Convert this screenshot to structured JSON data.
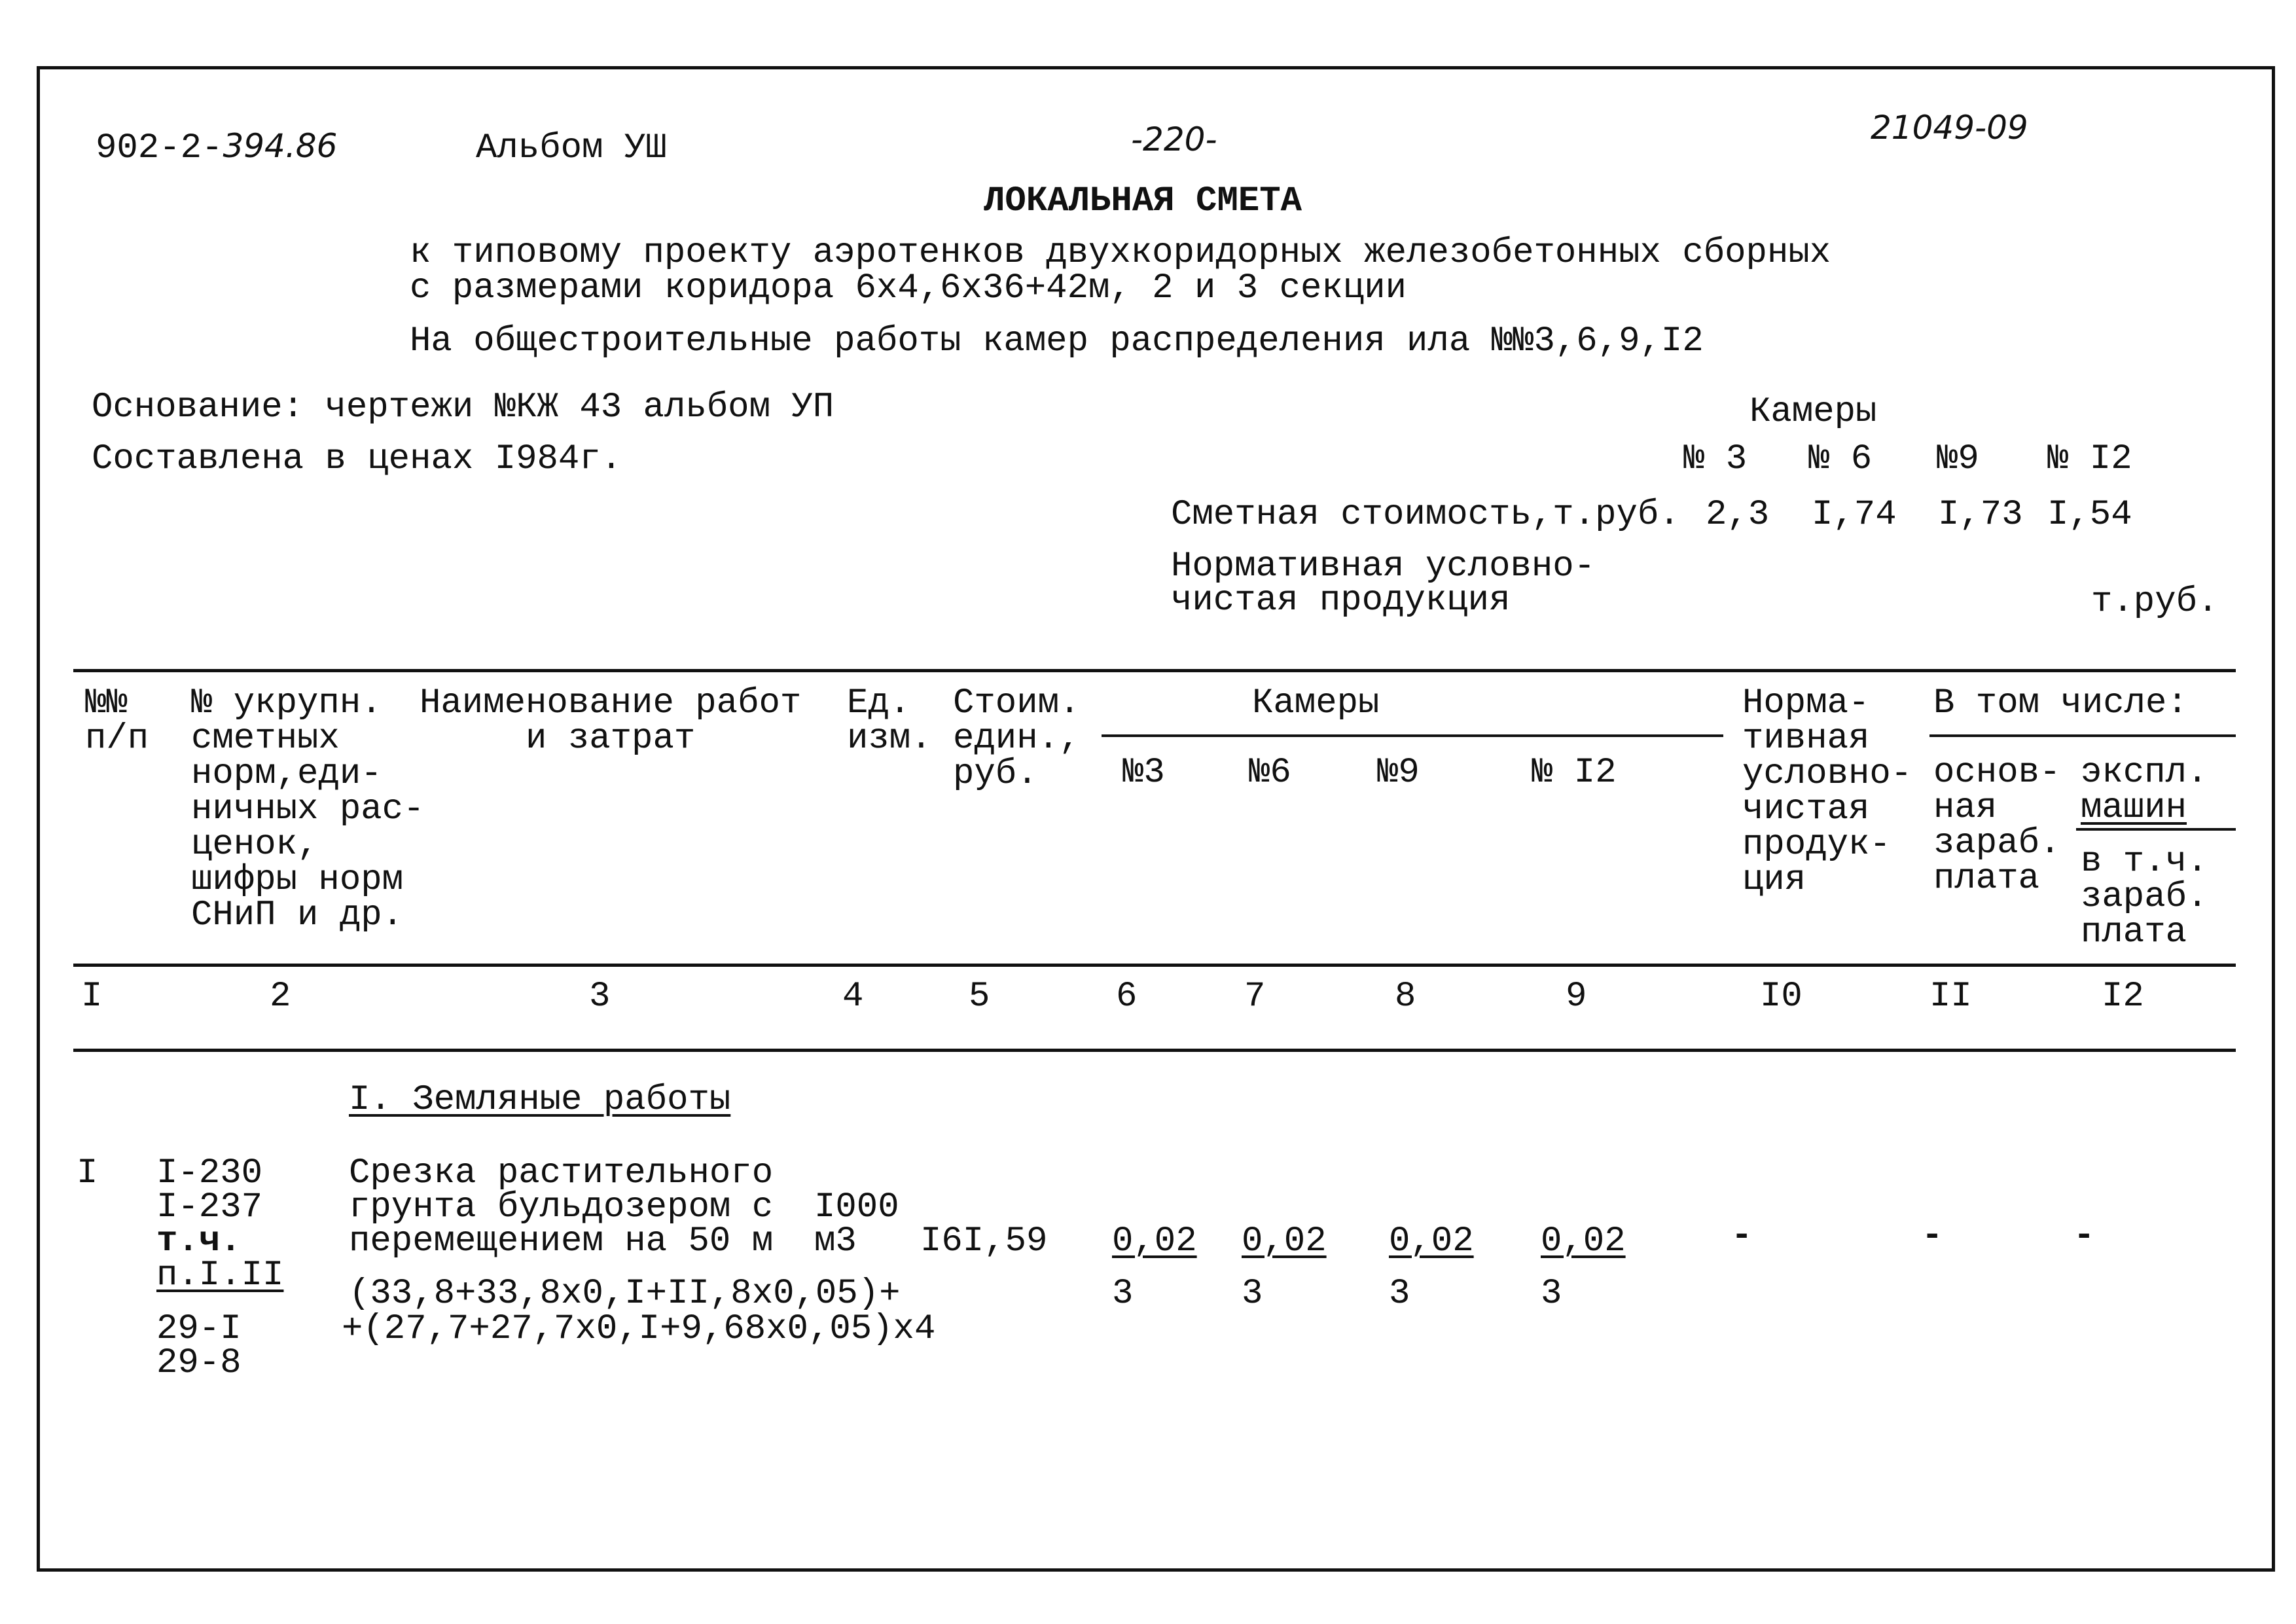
{
  "header": {
    "code_printed": "902-2-",
    "code_handwritten": "394.86",
    "album": "Альбом УШ",
    "page_number": "-220-",
    "inventory_number": "21049-09"
  },
  "title": "ЛОКАЛЬНАЯ СМЕТА",
  "subtitle": [
    "к типовому проекту аэротенков двухкоридорных железобетонных сборных",
    "с размерами коридора 6х4,6х36+42м, 2 и 3 секции",
    "На общестроительные работы камер распределения ила №№3,6,9,I2"
  ],
  "basis": "Основание: чертежи №КЖ 43 альбом УП",
  "prices": "Составлена в ценах I984г.",
  "summary": {
    "chambers_label": "Камеры",
    "chambers": [
      "№ 3",
      "№ 6",
      "№9",
      "№ I2"
    ],
    "cost_label": "Сметная стоимость,т.руб.",
    "cost_values": [
      "2,3",
      "I,74",
      "I,73",
      "I,54"
    ],
    "normative_label_1": "Нормативная условно-",
    "normative_label_2": "чистая продукция",
    "normative_unit": "т.руб."
  },
  "table": {
    "headers": {
      "c1": "№№\nп/п",
      "c2": "№ укрупн.\nсметных\nнорм,еди-\nничных рас-\nценок,\nшифры норм\nСНиП и др.",
      "c3": "Наименование работ\n     и затрат",
      "c4": "Ед.\nизм.",
      "c5": "Стоим.\nедин.,\nруб.",
      "chambers": "Камеры",
      "ch3": "№3",
      "ch6": "№6",
      "ch9": "№9",
      "ch12": "№ I2",
      "c10": "Норма-\nтивная\nусловно-\nчистая\nпродук-\nция",
      "incl": "В том числе:",
      "c11": "основ-\nная\nзараб.\nплата",
      "c12a": "экспл.",
      "c12b": "машин",
      "c12c": "в т.ч.\nзараб.\nплата"
    },
    "column_numbers": [
      "I",
      "2",
      "3",
      "4",
      "5",
      "6",
      "7",
      "8",
      "9",
      "I0",
      "II",
      "I2"
    ],
    "section_title": "I. Земляные работы",
    "rows": [
      {
        "num": "I",
        "codes": [
          "I-230",
          "I-237",
          "т.ч."
        ],
        "codes_underlined": "п.I.II",
        "codes_after": [
          "29-I",
          "29-8"
        ],
        "name": [
          "Срезка растительного",
          "грунта бульдозером с",
          "перемещением на 50 м"
        ],
        "unit": [
          "I000",
          "м3"
        ],
        "unit_cost": "I6I,59",
        "chamber_values": [
          "0,02",
          "0,02",
          "0,02",
          "0,02"
        ],
        "chamber_sub": [
          "3",
          "3",
          "3",
          "3"
        ],
        "formula": [
          "(33,8+33,8х0,I+II,8х0,05)+",
          "+(27,7+27,7х0,I+9,68х0,05)х4"
        ],
        "normative": "-",
        "wages": "-",
        "machines": "-"
      }
    ]
  }
}
